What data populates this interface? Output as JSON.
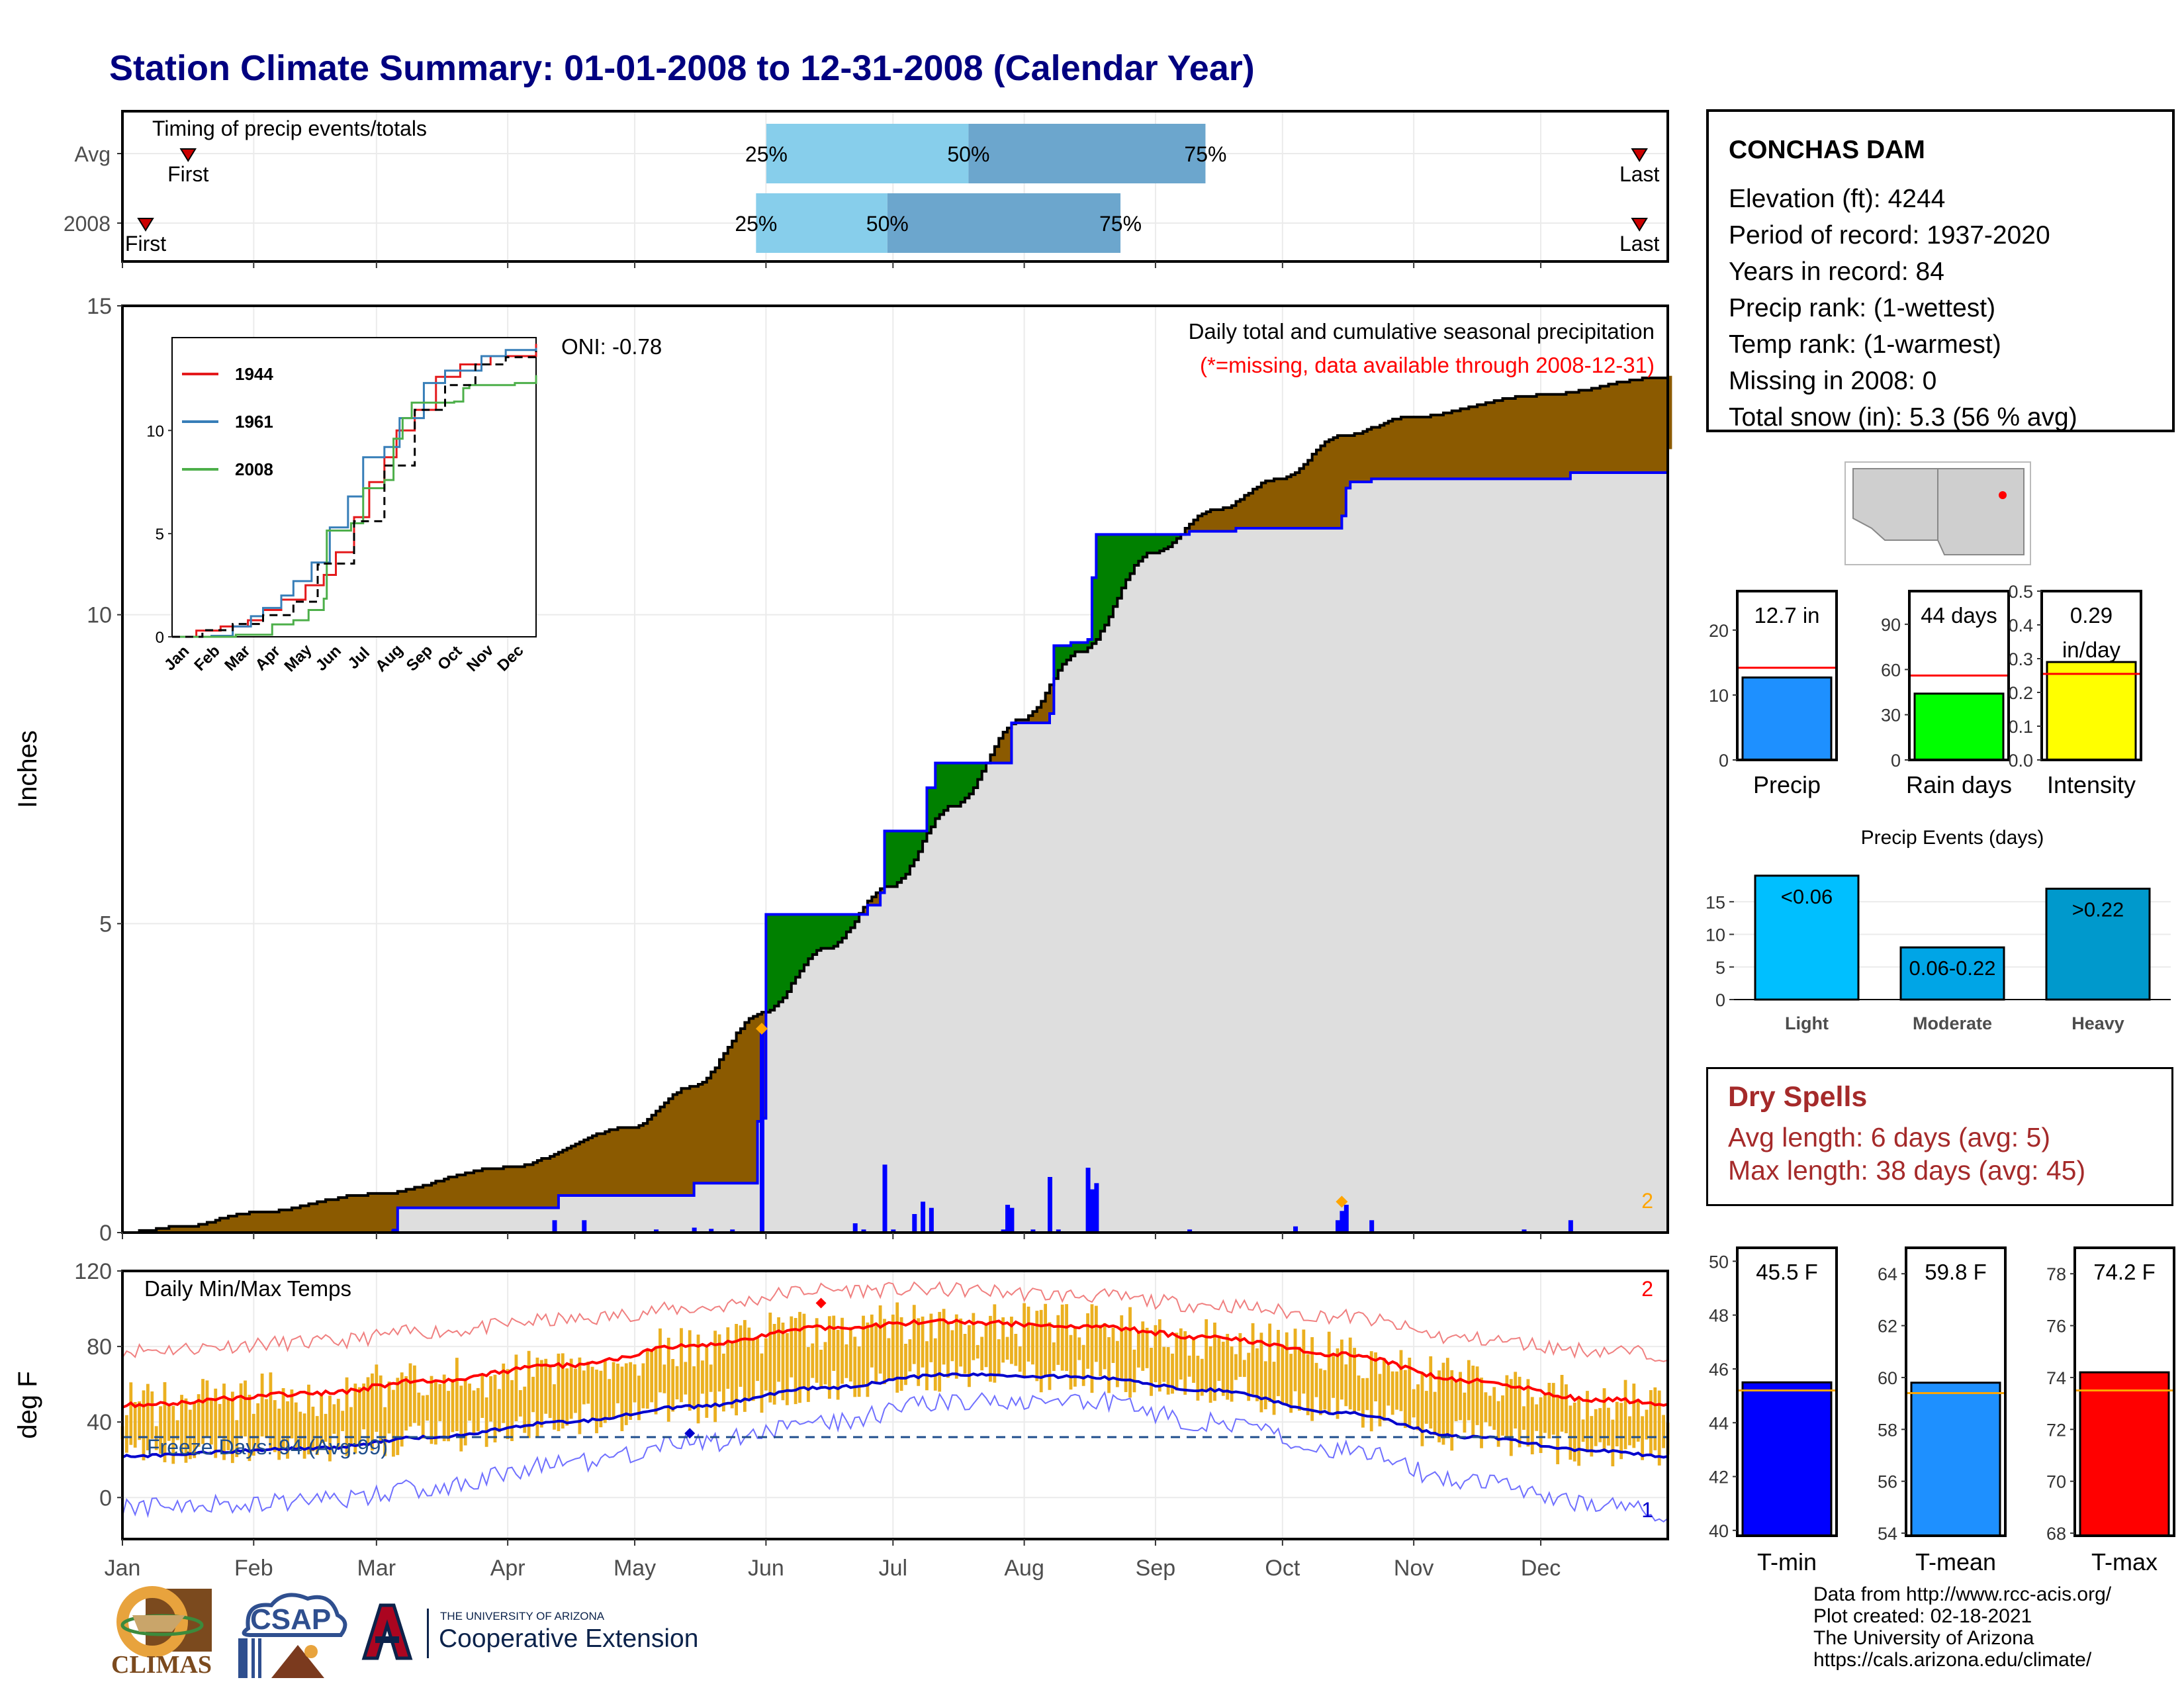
{
  "page": {
    "title": "Station Climate Summary: 01-01-2008 to 12-31-2008 (Calendar Year)"
  },
  "station": {
    "name": "CONCHAS DAM",
    "lines": [
      "Elevation (ft): 4244",
      "Period of record: 1937-2020",
      "Years in record: 84",
      "Precip rank:  (1-wettest)",
      "Temp rank:  (1-warmest)",
      "Missing in 2008: 0",
      "Total snow (in): 5.3 (56 % avg)"
    ]
  },
  "dry_spells": {
    "title": "Dry Spells",
    "avg": "Avg length: 6 days (avg: 5)",
    "max": "Max length: 38 days (avg: 45)"
  },
  "credits": {
    "lines": [
      "Data from http://www.rcc-acis.org/",
      "Plot created: 02-18-2021",
      "The University of Arizona",
      "https://cals.arizona.edu/climate/"
    ]
  },
  "logos": {
    "climas": "CLIMAS",
    "csap": "CSAP",
    "ua_small": "THE UNIVERSITY OF ARIZONA",
    "ua_big": "Cooperative Extension"
  },
  "colors": {
    "navy": "#000080",
    "brown": "#8B5A00",
    "green": "#008000",
    "gray_fill": "#DEDEDE",
    "blue": "#0000FF",
    "light_blue": "#87CEEB",
    "steel_blue": "#6CA6CD",
    "orange": "#FFA500",
    "gold": "#EBB020",
    "red": "#FF0000",
    "dark_red": "#A52A2A"
  },
  "chart_data": [
    {
      "id": "timing",
      "type": "bar",
      "title": "Timing of precip events/totals",
      "rows": [
        {
          "label": "Avg",
          "first_month": 1.51,
          "last_month": 12.78,
          "q25": 6.0,
          "q50": 7.57,
          "q75": 9.41
        },
        {
          "label": "2008",
          "first_month": 1.18,
          "last_month": 12.78,
          "q25": 5.92,
          "q50": 6.94,
          "q75": 8.75
        }
      ],
      "marker_labels": {
        "first": "First",
        "last": "Last",
        "q25": "25%",
        "q50": "50%",
        "q75": "75%"
      }
    },
    {
      "id": "cumulative_precip",
      "type": "area",
      "title": "Daily total and cumulative seasonal precipitation",
      "subtitle": "(*=missing, data available through 2008-12-31)",
      "oni": "ONI: -0.78",
      "ylabel": "Inches",
      "ylim": [
        0,
        15
      ],
      "yticks": [
        0,
        5,
        10,
        15
      ],
      "corner_label": "2",
      "avg_cum": [
        [
          1,
          0
        ],
        [
          15,
          0.1
        ],
        [
          32,
          0.32
        ],
        [
          60,
          0.62
        ],
        [
          91,
          1.05
        ],
        [
          121,
          1.7
        ],
        [
          135,
          2.35
        ],
        [
          152,
          3.55
        ],
        [
          167,
          4.6
        ],
        [
          182,
          5.6
        ],
        [
          197,
          6.9
        ],
        [
          213,
          8.3
        ],
        [
          227,
          9.4
        ],
        [
          244,
          11.0
        ],
        [
          259,
          11.7
        ],
        [
          274,
          12.2
        ],
        [
          289,
          12.9
        ],
        [
          305,
          13.2
        ],
        [
          335,
          13.55
        ],
        [
          366,
          13.85
        ]
      ],
      "obs_cum": [
        [
          1,
          0
        ],
        [
          65,
          0.04
        ],
        [
          66,
          0.4
        ],
        [
          103,
          0.4
        ],
        [
          104,
          0.6
        ],
        [
          135,
          0.6
        ],
        [
          136,
          0.8
        ],
        [
          150,
          0.8
        ],
        [
          151,
          1.8
        ],
        [
          152,
          1.85
        ],
        [
          153,
          5.15
        ],
        [
          176,
          5.15
        ],
        [
          177,
          5.3
        ],
        [
          180,
          5.5
        ],
        [
          181,
          6.5
        ],
        [
          190,
          6.5
        ],
        [
          191,
          7.2
        ],
        [
          193,
          7.6
        ],
        [
          210,
          7.6
        ],
        [
          211,
          8.25
        ],
        [
          220,
          8.4
        ],
        [
          221,
          9.5
        ],
        [
          225,
          9.55
        ],
        [
          229,
          9.6
        ],
        [
          230,
          10.6
        ],
        [
          231,
          11.3
        ],
        [
          253,
          11.35
        ],
        [
          263,
          11.35
        ],
        [
          264,
          11.4
        ],
        [
          288,
          11.4
        ],
        [
          289,
          11.6
        ],
        [
          290,
          12.05
        ],
        [
          291,
          12.15
        ],
        [
          296,
          12.2
        ],
        [
          343,
          12.3
        ],
        [
          366,
          12.68
        ]
      ],
      "daily_bars": [
        [
          65,
          0.05
        ],
        [
          103,
          0.2
        ],
        [
          110,
          0.2
        ],
        [
          127,
          0.05
        ],
        [
          136,
          0.08
        ],
        [
          140,
          0.06
        ],
        [
          145,
          0.05
        ],
        [
          152,
          3.3
        ],
        [
          174,
          0.15
        ],
        [
          176,
          0.05
        ],
        [
          181,
          1.1
        ],
        [
          183,
          0.05
        ],
        [
          188,
          0.3
        ],
        [
          190,
          0.5
        ],
        [
          192,
          0.4
        ],
        [
          209,
          0.05
        ],
        [
          210,
          0.45
        ],
        [
          211,
          0.4
        ],
        [
          216,
          0.05
        ],
        [
          220,
          0.9
        ],
        [
          222,
          0.05
        ],
        [
          229,
          1.05
        ],
        [
          230,
          0.7
        ],
        [
          231,
          0.8
        ],
        [
          253,
          0.05
        ],
        [
          278,
          0.1
        ],
        [
          288,
          0.2
        ],
        [
          289,
          0.35
        ],
        [
          290,
          0.45
        ],
        [
          296,
          0.2
        ],
        [
          332,
          0.05
        ],
        [
          343,
          0.2
        ]
      ],
      "markers": [
        [
          152,
          3.3
        ],
        [
          289,
          0.5
        ]
      ]
    },
    {
      "id": "inset",
      "type": "line",
      "categories": [
        "Jan",
        "Feb",
        "Mar",
        "Apr",
        "May",
        "Jun",
        "Jul",
        "Aug",
        "Sep",
        "Oct",
        "Nov",
        "Dec"
      ],
      "ylim": [
        0,
        14.5
      ],
      "yticks": [
        0,
        5,
        10
      ],
      "series": [
        {
          "name": "1944",
          "color": "#E41A1C",
          "values": [
            [
              0,
              0
            ],
            [
              0.8,
              0.3
            ],
            [
              1.6,
              0.5
            ],
            [
              2.5,
              0.8
            ],
            [
              3.0,
              1.3
            ],
            [
              3.6,
              1.8
            ],
            [
              4.4,
              2.5
            ],
            [
              5.0,
              3.0
            ],
            [
              5.4,
              4.1
            ],
            [
              6.0,
              5.8
            ],
            [
              6.5,
              7.5
            ],
            [
              7.0,
              8.7
            ],
            [
              7.4,
              10.0
            ],
            [
              8.0,
              11.0
            ],
            [
              8.7,
              12.6
            ],
            [
              9.5,
              13.2
            ],
            [
              10.5,
              13.6
            ],
            [
              12,
              14.2
            ]
          ]
        },
        {
          "name": "1961",
          "color": "#377EB8",
          "values": [
            [
              0,
              0
            ],
            [
              1.3,
              0.05
            ],
            [
              2.0,
              0.5
            ],
            [
              2.6,
              1.0
            ],
            [
              3.0,
              1.4
            ],
            [
              3.6,
              2.0
            ],
            [
              4.0,
              2.7
            ],
            [
              4.6,
              3.6
            ],
            [
              5.2,
              5.3
            ],
            [
              5.8,
              6.8
            ],
            [
              6.3,
              8.7
            ],
            [
              7.0,
              9.2
            ],
            [
              7.5,
              10.6
            ],
            [
              8.3,
              12.3
            ],
            [
              9.0,
              12.9
            ],
            [
              10.2,
              13.6
            ],
            [
              11.0,
              13.9
            ],
            [
              12,
              14.0
            ]
          ]
        },
        {
          "name": "2008",
          "color": "#4DAF4A",
          "values": [
            [
              0,
              0
            ],
            [
              2.1,
              0.1
            ],
            [
              3.3,
              0.6
            ],
            [
              4.0,
              0.8
            ],
            [
              4.5,
              1.3
            ],
            [
              5.0,
              1.85
            ],
            [
              5.1,
              5.15
            ],
            [
              5.9,
              5.5
            ],
            [
              6.3,
              7.2
            ],
            [
              7.0,
              7.6
            ],
            [
              7.3,
              9.6
            ],
            [
              7.6,
              10.6
            ],
            [
              7.9,
              11.35
            ],
            [
              9.3,
              11.4
            ],
            [
              9.6,
              12.05
            ],
            [
              9.8,
              12.2
            ],
            [
              11.3,
              12.3
            ],
            [
              12,
              12.68
            ]
          ]
        },
        {
          "name": "",
          "color": "#000000",
          "dashed": true,
          "values": [
            [
              0,
              0
            ],
            [
              1,
              0.32
            ],
            [
              2,
              0.62
            ],
            [
              3,
              1.05
            ],
            [
              4,
              1.7
            ],
            [
              4.8,
              3.5
            ],
            [
              5,
              3.55
            ],
            [
              6,
              5.6
            ],
            [
              7,
              8.3
            ],
            [
              8,
              11.0
            ],
            [
              9,
              12.2
            ],
            [
              10,
              13.2
            ],
            [
              11,
              13.55
            ],
            [
              12,
              13.85
            ]
          ]
        }
      ]
    },
    {
      "id": "temps",
      "type": "line",
      "title": "Daily Min/Max Temps",
      "ylabel": "deg F",
      "ylim": [
        -22,
        120
      ],
      "yticks": [
        0,
        40,
        80,
        120
      ],
      "freeze_label": "Freeze Days: 94 (Avg:99)",
      "freeze_line": 32,
      "corner_top": "2",
      "corner_bottom": "1",
      "x_months": [
        "Jan",
        "Feb",
        "Mar",
        "Apr",
        "May",
        "Jun",
        "Jul",
        "Aug",
        "Sep",
        "Oct",
        "Nov",
        "Dec"
      ],
      "avg_max_anchor": [
        [
          1,
          49
        ],
        [
          46,
          55
        ],
        [
          74,
          62
        ],
        [
          105,
          70
        ],
        [
          135,
          80
        ],
        [
          166,
          90
        ],
        [
          196,
          93
        ],
        [
          227,
          91
        ],
        [
          258,
          85
        ],
        [
          288,
          76
        ],
        [
          319,
          62
        ],
        [
          349,
          52
        ],
        [
          366,
          50
        ]
      ],
      "avg_min_anchor": [
        [
          1,
          22
        ],
        [
          46,
          26
        ],
        [
          74,
          32
        ],
        [
          105,
          40
        ],
        [
          135,
          48
        ],
        [
          166,
          58
        ],
        [
          196,
          65
        ],
        [
          227,
          64
        ],
        [
          258,
          57
        ],
        [
          288,
          45
        ],
        [
          319,
          32
        ],
        [
          349,
          25
        ],
        [
          366,
          22
        ]
      ],
      "record_max_anchor": [
        [
          1,
          78
        ],
        [
          46,
          82
        ],
        [
          74,
          88
        ],
        [
          105,
          94
        ],
        [
          135,
          100
        ],
        [
          166,
          110
        ],
        [
          196,
          110
        ],
        [
          227,
          107
        ],
        [
          258,
          102
        ],
        [
          288,
          96
        ],
        [
          319,
          84
        ],
        [
          349,
          78
        ],
        [
          366,
          76
        ]
      ],
      "record_min_anchor": [
        [
          1,
          -5
        ],
        [
          46,
          -2
        ],
        [
          74,
          5
        ],
        [
          105,
          18
        ],
        [
          135,
          28
        ],
        [
          166,
          40
        ],
        [
          196,
          50
        ],
        [
          227,
          52
        ],
        [
          258,
          40
        ],
        [
          288,
          26
        ],
        [
          319,
          8
        ],
        [
          349,
          -3
        ],
        [
          366,
          -8
        ]
      ],
      "markers": [
        [
          166,
          103
        ],
        [
          135,
          34
        ]
      ]
    },
    {
      "id": "totals",
      "type": "bar",
      "panels": [
        {
          "label": "Precip",
          "value": 12.7,
          "avg": 14.2,
          "value_text": "12.7 in",
          "ylim": [
            0,
            26
          ],
          "yticks": [
            0,
            10,
            20
          ],
          "color": "#1E90FF"
        },
        {
          "label": "Rain days",
          "value": 44,
          "avg": 56,
          "value_text": "44 days",
          "ylim": [
            0,
            112
          ],
          "yticks": [
            0,
            30,
            60,
            90
          ],
          "color": "#00FF00"
        },
        {
          "label": "Intensity",
          "value": 0.29,
          "avg": 0.255,
          "value_text": "0.29 in/day",
          "ylim": [
            0,
            0.5
          ],
          "yticks": [
            0,
            0.1,
            0.2,
            0.3,
            0.4,
            0.5
          ],
          "color": "#FFFF00"
        }
      ]
    },
    {
      "id": "events",
      "type": "bar",
      "title": "Precip Events (days)",
      "categories": [
        "Light",
        "Moderate",
        "Heavy"
      ],
      "bar_labels": [
        "<0.06",
        "0.06-0.22",
        ">0.22"
      ],
      "values": [
        19,
        8,
        17
      ],
      "colors": [
        "#00BFFF",
        "#00A5E6",
        "#0099CC"
      ],
      "ylim": [
        0,
        20
      ],
      "yticks": [
        0,
        5,
        10,
        15
      ]
    },
    {
      "id": "temp_totals",
      "type": "bar",
      "panels": [
        {
          "label": "T-min",
          "value": 45.5,
          "avg": 45.2,
          "value_text": "45.5 F",
          "ylim": [
            39.8,
            50.5
          ],
          "yticks": [
            40,
            42,
            44,
            46,
            48,
            50
          ],
          "color": "#0000FF"
        },
        {
          "label": "T-mean",
          "value": 59.8,
          "avg": 59.4,
          "value_text": "59.8 F",
          "ylim": [
            53.9,
            65
          ],
          "yticks": [
            54,
            56,
            58,
            60,
            62,
            64
          ],
          "color": "#1E90FF"
        },
        {
          "label": "T-max",
          "value": 74.2,
          "avg": 73.5,
          "value_text": "74.2 F",
          "ylim": [
            67.9,
            79
          ],
          "yticks": [
            68,
            70,
            72,
            74,
            76,
            78
          ],
          "color": "#FF0000"
        }
      ]
    }
  ]
}
